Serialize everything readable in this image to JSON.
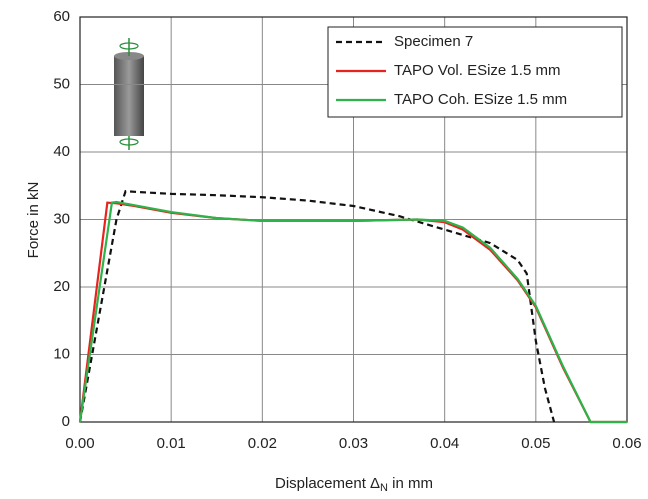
{
  "chart_data": {
    "type": "line",
    "x_label": {
      "main": "Displacement Δ",
      "sub": "N",
      "rest": " in mm"
    },
    "y_label": "Force in kN",
    "xlim": [
      0,
      0.06
    ],
    "ylim": [
      0,
      60
    ],
    "xticks": [
      {
        "value": 0,
        "label": "0.00"
      },
      {
        "value": 0.01,
        "label": "0.01"
      },
      {
        "value": 0.02,
        "label": "0.02"
      },
      {
        "value": 0.03,
        "label": "0.03"
      },
      {
        "value": 0.04,
        "label": "0.04"
      },
      {
        "value": 0.05,
        "label": "0.05"
      },
      {
        "value": 0.06,
        "label": "0.06"
      }
    ],
    "yticks": [
      0,
      10,
      20,
      30,
      40,
      50,
      60
    ],
    "grid": true,
    "legend": "upper right",
    "series": [
      {
        "name": "Specimen 7",
        "color": "#111111",
        "line_style": "dashed",
        "x": [
          0,
          0.002,
          0.004,
          0.005,
          0.006,
          0.01,
          0.015,
          0.02,
          0.025,
          0.03,
          0.035,
          0.04,
          0.045,
          0.048,
          0.049,
          0.05,
          0.051,
          0.052
        ],
        "values": [
          0,
          15,
          30,
          34.2,
          34.1,
          33.8,
          33.6,
          33.3,
          32.8,
          32,
          30.5,
          28.5,
          26.5,
          24,
          22,
          12,
          5,
          0
        ]
      },
      {
        "name": "TAPO Vol. ESize 1.5 mm",
        "color": "#e8231f",
        "line_style": "solid",
        "x": [
          0,
          0.003,
          0.004,
          0.006,
          0.01,
          0.015,
          0.02,
          0.03,
          0.037,
          0.04,
          0.042,
          0.045,
          0.048,
          0.05,
          0.053,
          0.056,
          0.06
        ],
        "values": [
          0,
          32.5,
          32.4,
          32,
          31,
          30.2,
          29.8,
          29.8,
          30,
          29.6,
          28.5,
          25.5,
          21,
          17,
          8,
          0,
          0
        ]
      },
      {
        "name": "TAPO Coh. ESize 1.5 mm",
        "color": "#2db34a",
        "line_style": "solid",
        "x": [
          0,
          0.0035,
          0.004,
          0.006,
          0.01,
          0.015,
          0.02,
          0.03,
          0.037,
          0.04,
          0.042,
          0.045,
          0.048,
          0.05,
          0.053,
          0.056,
          0.06
        ],
        "values": [
          0,
          32.5,
          32.6,
          32.1,
          31.1,
          30.2,
          29.8,
          29.8,
          30,
          29.8,
          28.8,
          25.8,
          21.2,
          17.2,
          8.2,
          0,
          0
        ]
      }
    ]
  }
}
